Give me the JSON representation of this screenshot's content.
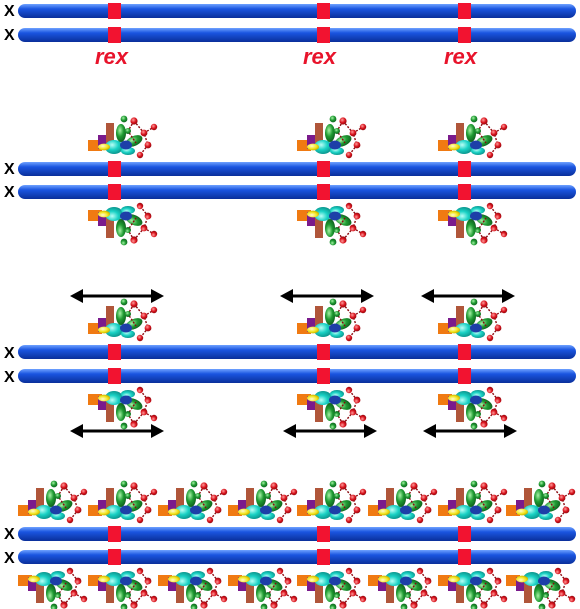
{
  "chromosome_label": "X",
  "site_label": "rex",
  "colors": {
    "chromosome": "#1a55e0",
    "chromosome_highlight": "#6fa2ff",
    "rex_site": "#f21330",
    "rex_text": "#e8132b",
    "arrow": "#000000",
    "complex_orange": "#f07a12",
    "complex_purple": "#7a1a8c",
    "complex_brown": "#b0563a",
    "complex_cyan": "#19d1c4",
    "complex_green": "#1f9b32",
    "complex_lightgreen": "#35c450",
    "complex_red": "#d8121c",
    "complex_yellow": "#f2e41a",
    "complex_blue": "#1d3fa8"
  },
  "icons": {
    "complex": "condensin-complex-icon",
    "arrow": "double-headed-arrow-icon"
  }
}
